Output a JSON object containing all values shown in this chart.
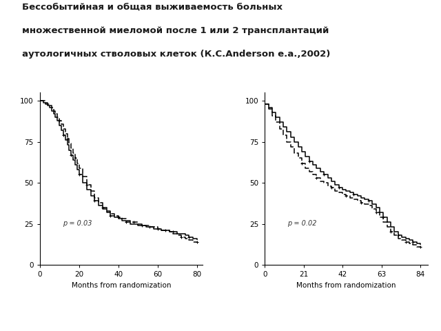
{
  "title_line1": "Бессобытийная и общая выживаемость больных",
  "title_line2": "множественной миеломой после 1 или 2 трансплантаций",
  "title_line3": "аутологичных стволовых клеток (К.С.Anderson e.a.,2002)",
  "xlabel": "Months from randomization",
  "background_color": "#ffffff",
  "left_plot": {
    "p_value": "p = 0.03",
    "xticks": [
      0,
      20,
      40,
      60,
      80
    ],
    "yticks": [
      0,
      25,
      50,
      75,
      100
    ],
    "xlim": [
      0,
      83
    ],
    "ylim": [
      0,
      105
    ],
    "curve1_x": [
      0,
      1,
      2,
      3,
      4,
      5,
      6,
      7,
      8,
      9,
      10,
      11,
      12,
      13,
      14,
      15,
      16,
      17,
      18,
      19,
      20,
      22,
      24,
      26,
      28,
      30,
      32,
      34,
      36,
      38,
      40,
      42,
      44,
      46,
      48,
      50,
      52,
      54,
      56,
      58,
      60,
      62,
      64,
      66,
      68,
      70,
      72,
      74,
      76,
      78,
      80
    ],
    "curve1_y": [
      100,
      100,
      99,
      98,
      97,
      96,
      94,
      92,
      90,
      88,
      85,
      82,
      79,
      76,
      73,
      70,
      67,
      64,
      61,
      58,
      55,
      50,
      46,
      42,
      39,
      36,
      34,
      32,
      30,
      29,
      28,
      27,
      26,
      25,
      25,
      24,
      24,
      23,
      23,
      22,
      22,
      21,
      21,
      20,
      20,
      19,
      19,
      18,
      17,
      16,
      15
    ],
    "curve2_x": [
      0,
      1,
      2,
      3,
      4,
      5,
      6,
      7,
      8,
      9,
      10,
      11,
      12,
      13,
      14,
      15,
      16,
      17,
      18,
      19,
      20,
      22,
      24,
      26,
      28,
      30,
      32,
      34,
      36,
      38,
      40,
      42,
      44,
      46,
      48,
      50,
      52,
      54,
      56,
      58,
      60,
      62,
      64,
      66,
      68,
      70,
      72,
      74,
      76,
      78,
      80
    ],
    "curve2_y": [
      100,
      100,
      100,
      99,
      98,
      97,
      96,
      94,
      92,
      90,
      88,
      86,
      83,
      80,
      77,
      74,
      71,
      68,
      65,
      62,
      59,
      54,
      49,
      45,
      41,
      38,
      35,
      33,
      31,
      30,
      29,
      28,
      27,
      26,
      26,
      25,
      24,
      24,
      23,
      23,
      22,
      21,
      21,
      20,
      19,
      18,
      17,
      16,
      15,
      14,
      14
    ]
  },
  "right_plot": {
    "p_value": "p = 0.02",
    "xticks": [
      0,
      21,
      42,
      63,
      84
    ],
    "yticks": [
      0,
      25,
      50,
      75,
      100
    ],
    "xlim": [
      0,
      88
    ],
    "ylim": [
      0,
      105
    ],
    "curve1_x": [
      0,
      2,
      4,
      6,
      8,
      10,
      12,
      14,
      16,
      18,
      20,
      22,
      24,
      26,
      28,
      30,
      32,
      34,
      36,
      38,
      40,
      42,
      44,
      46,
      48,
      50,
      52,
      54,
      56,
      58,
      60,
      62,
      64,
      66,
      68,
      70,
      72,
      74,
      76,
      78,
      80,
      82,
      84
    ],
    "curve1_y": [
      98,
      96,
      93,
      90,
      87,
      84,
      81,
      78,
      75,
      72,
      69,
      66,
      63,
      61,
      59,
      57,
      55,
      53,
      51,
      49,
      47,
      46,
      45,
      44,
      43,
      42,
      41,
      40,
      39,
      37,
      35,
      32,
      29,
      26,
      23,
      20,
      18,
      17,
      16,
      15,
      14,
      13,
      12
    ],
    "curve2_x": [
      0,
      2,
      4,
      6,
      8,
      10,
      12,
      14,
      16,
      18,
      20,
      22,
      24,
      26,
      28,
      30,
      32,
      34,
      36,
      38,
      40,
      42,
      44,
      46,
      48,
      50,
      52,
      54,
      56,
      58,
      60,
      62,
      64,
      66,
      68,
      70,
      72,
      74,
      76,
      78,
      80,
      82,
      84
    ],
    "curve2_y": [
      98,
      95,
      91,
      87,
      83,
      79,
      75,
      72,
      68,
      65,
      62,
      59,
      57,
      55,
      53,
      51,
      50,
      48,
      47,
      45,
      44,
      43,
      42,
      41,
      40,
      39,
      38,
      37,
      36,
      34,
      32,
      29,
      26,
      23,
      20,
      18,
      16,
      15,
      14,
      13,
      12,
      11,
      11
    ]
  },
  "line_color1": "#000000",
  "line_color2": "#444444",
  "line_width": 1.1,
  "font_color": "#1a1a1a",
  "title_fontsize": 9.5
}
